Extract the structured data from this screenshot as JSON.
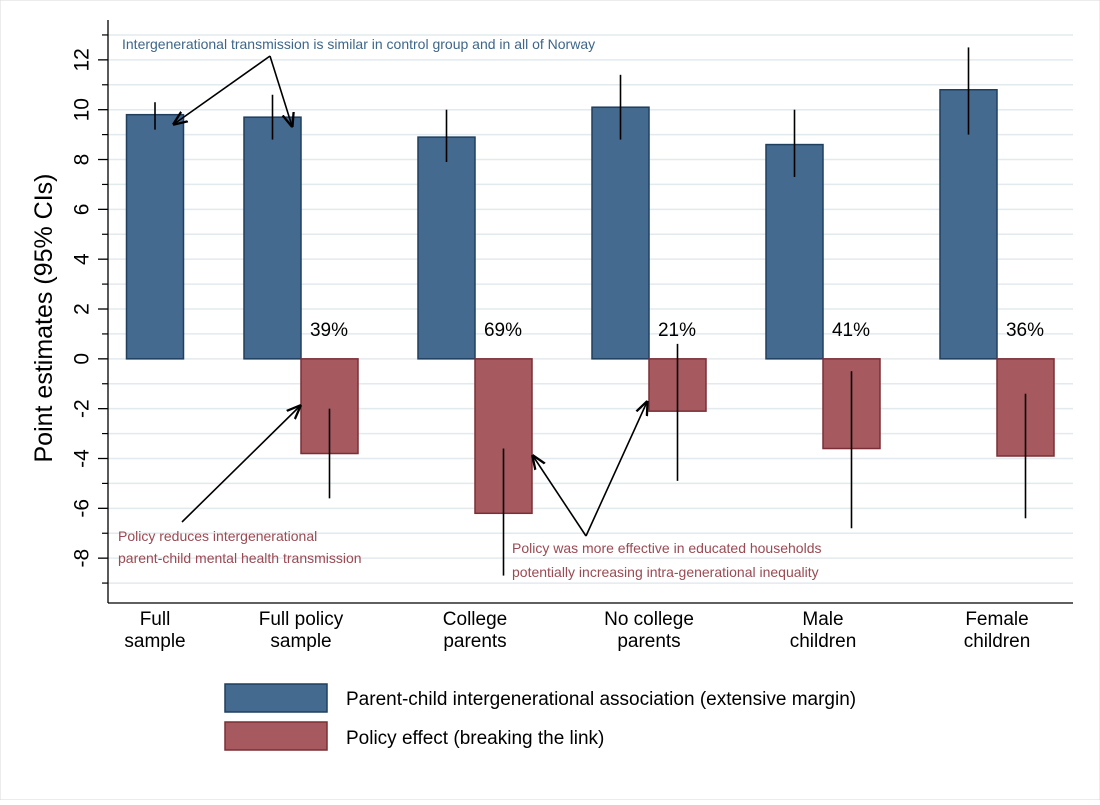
{
  "colors": {
    "blue_fill": "#456A8F",
    "blue_stroke": "#1F3F5F",
    "red_fill": "#A65A60",
    "red_stroke": "#7A2F36",
    "grid": "#E3EAEE",
    "axis": "#000000",
    "blue_annotation": "#3E6689",
    "red_annotation": "#9A4A52"
  },
  "chart_data": {
    "type": "bar",
    "ylabel": "Point estimates (95% CIs)",
    "ylim": [
      -9.8,
      13.6
    ],
    "yticks": [
      -8,
      -6,
      -4,
      -2,
      0,
      2,
      4,
      6,
      8,
      10,
      12
    ],
    "ytick_labels": [
      "-8",
      "-6",
      "-4",
      "-2",
      "0",
      "2",
      "4",
      "6",
      "8",
      "10",
      "12"
    ],
    "grid": true,
    "categories": [
      [
        "Full",
        "sample"
      ],
      [
        "Full policy",
        "sample"
      ],
      [
        "College",
        "parents"
      ],
      [
        "No college",
        "parents"
      ],
      [
        "Male",
        "children"
      ],
      [
        "Female",
        "children"
      ]
    ],
    "series": [
      {
        "name": "Parent-child intergenerational association (extensive margin)",
        "color_key": "blue",
        "values": [
          9.8,
          9.7,
          8.9,
          10.1,
          8.6,
          10.8
        ],
        "ci_low": [
          9.2,
          8.8,
          7.9,
          8.8,
          7.3,
          9.0
        ],
        "ci_high": [
          10.3,
          10.6,
          10.0,
          11.4,
          10.0,
          12.5
        ]
      },
      {
        "name": "Policy effect (breaking the link)",
        "color_key": "red",
        "values": [
          null,
          -3.8,
          -6.2,
          -2.1,
          -3.6,
          -3.9
        ],
        "ci_low": [
          null,
          -5.6,
          -8.7,
          -4.9,
          -6.8,
          -6.4
        ],
        "ci_high": [
          null,
          -2.0,
          -3.6,
          0.6,
          -0.5,
          -1.4
        ]
      }
    ],
    "data_labels": [
      null,
      "39%",
      "69%",
      "21%",
      "41%",
      "36%"
    ],
    "legend_position": "bottom",
    "annotations": {
      "top": "Intergenerational transmission is similar in control group and in all of Norway",
      "left_line1": "Policy reduces intergenerational",
      "left_line2": "parent-child mental health transmission",
      "right_line1": "Policy was more effective in educated households",
      "right_line2": "potentially increasing intra-generational inequality"
    }
  }
}
